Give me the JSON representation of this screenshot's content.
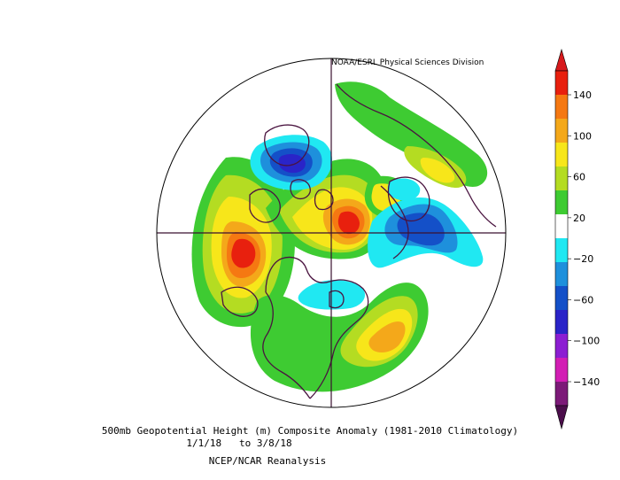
{
  "map": {
    "credit": "NOAA/ESRL Physical Sciences Division",
    "title": "500mb Geopotential Height (m) Composite Anomaly (1981-2010 Climatology)",
    "dates": "1/1/18   to 3/8/18",
    "source": "NCEP/NCAR Reanalysis",
    "projection": "north-polar-stereographic",
    "variable": "500mb geopotential height anomaly",
    "units": "m",
    "colors": {
      "coastline": "#4a1440",
      "gridline": "#3a1030"
    }
  },
  "colorbar": {
    "labels": [
      "140",
      "100",
      "60",
      "20",
      "−20",
      "−60",
      "−100",
      "−140"
    ],
    "levels": [
      {
        "from": 120,
        "to": 140,
        "color": "#e8200e"
      },
      {
        "from": 100,
        "to": 120,
        "color": "#f57812"
      },
      {
        "from": 80,
        "to": 100,
        "color": "#f4a81a"
      },
      {
        "from": 60,
        "to": 80,
        "color": "#f7e61a"
      },
      {
        "from": 40,
        "to": 60,
        "color": "#b4dc22"
      },
      {
        "from": 20,
        "to": 40,
        "color": "#3ecb32"
      },
      {
        "from": -20,
        "to": 20,
        "color": "#ffffff"
      },
      {
        "from": -40,
        "to": -20,
        "color": "#20e8f2"
      },
      {
        "from": -60,
        "to": -40,
        "color": "#1e90dc"
      },
      {
        "from": -80,
        "to": -60,
        "color": "#1450c8"
      },
      {
        "from": -100,
        "to": -80,
        "color": "#2a24c8"
      },
      {
        "from": -120,
        "to": -100,
        "color": "#8c1ed2"
      },
      {
        "from": -140,
        "to": -120,
        "color": "#d21eb4"
      },
      {
        "from": -160,
        "to": -140,
        "color": "#7c1a78"
      }
    ],
    "arrow_top_color": "#d7191c",
    "arrow_bottom_color": "#4b0e4b"
  }
}
